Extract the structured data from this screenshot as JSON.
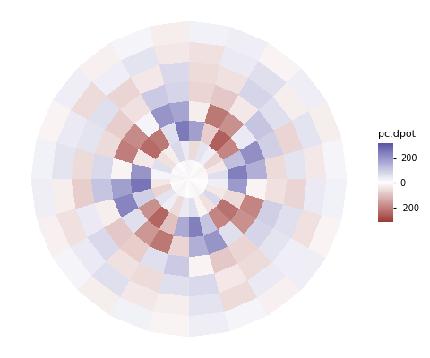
{
  "chart_data": {
    "type": "polar_heatmap",
    "tick_labels": false,
    "r_edges": [
      0,
      0.125,
      0.25,
      0.375,
      0.5,
      0.625,
      0.75,
      0.875,
      1.0
    ],
    "theta_edges": [
      0,
      15,
      30,
      45,
      60,
      75,
      90,
      105,
      120,
      135,
      150,
      165,
      180,
      195,
      210,
      225,
      240,
      255,
      270,
      285,
      300,
      315,
      330,
      345,
      360
    ],
    "cells": [
      [
        10,
        -15,
        20,
        -10,
        5,
        15,
        -20,
        10,
        -5,
        15,
        -10,
        20,
        -15,
        5,
        10,
        -20,
        15,
        -5,
        10,
        -15,
        20,
        -10,
        5,
        -5
      ],
      [
        60,
        -40,
        -70,
        30,
        50,
        -60,
        40,
        70,
        -30,
        -50,
        60,
        20,
        -40,
        -70,
        50,
        30,
        -60,
        40,
        60,
        -20,
        -50,
        70,
        -40,
        30
      ],
      [
        240,
        120,
        -200,
        -260,
        -80,
        180,
        250,
        60,
        -220,
        -240,
        -40,
        200,
        260,
        90,
        -180,
        -250,
        -100,
        160,
        240,
        110,
        -200,
        -230,
        -60,
        190
      ],
      [
        150,
        210,
        40,
        -180,
        -220,
        -30,
        170,
        200,
        20,
        -190,
        -210,
        -20,
        180,
        230,
        60,
        -170,
        -220,
        -70,
        150,
        200,
        60,
        -180,
        -200,
        -20
      ],
      [
        -60,
        90,
        110,
        -40,
        -90,
        -70,
        80,
        100,
        -50,
        -80,
        -60,
        70,
        110,
        -30,
        -90,
        -80,
        60,
        100,
        -20,
        -90,
        -70,
        80,
        90,
        -50
      ],
      [
        50,
        -70,
        60,
        80,
        -50,
        -60,
        70,
        -40,
        -70,
        60,
        50,
        -60,
        -80,
        40,
        70,
        -50,
        -60,
        60,
        70,
        -40,
        -60,
        50,
        60,
        -70
      ],
      [
        -40,
        50,
        -30,
        60,
        40,
        -50,
        -40,
        50,
        30,
        -60,
        40,
        50,
        -30,
        -50,
        40,
        60,
        -40,
        -30,
        50,
        -60,
        40,
        30,
        -50,
        40
      ],
      [
        20,
        -30,
        30,
        -20,
        30,
        25,
        -30,
        20,
        -25,
        30,
        -20,
        25,
        30,
        -25,
        20,
        -30,
        25,
        -20,
        30,
        20,
        -25,
        30,
        -20,
        25
      ]
    ],
    "colorbar": {
      "label": "pc.dpot",
      "range": [
        -320,
        320
      ],
      "ticks": [
        -200,
        0,
        200
      ]
    }
  }
}
